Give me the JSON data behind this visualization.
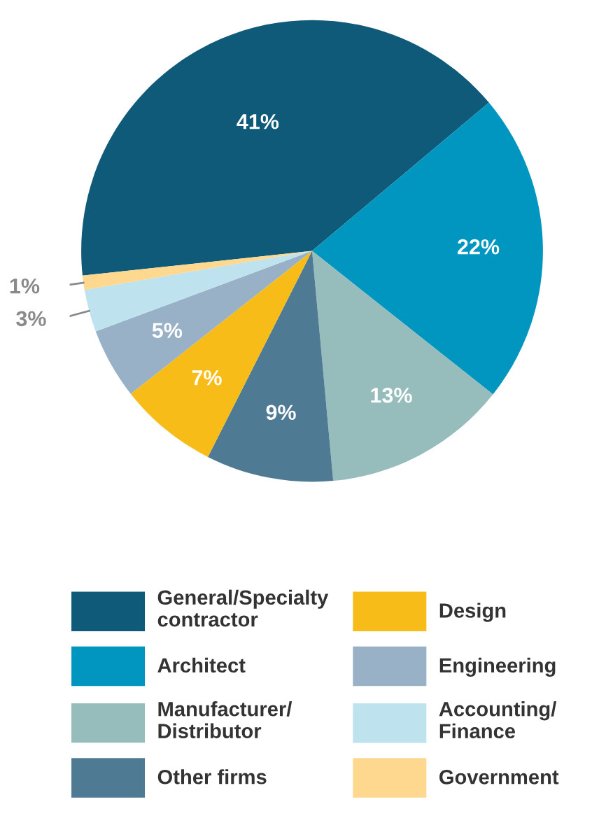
{
  "chart_data": {
    "type": "pie",
    "categories": [
      "General/Specialty\ncontractor",
      "Architect",
      "Manufacturer/\nDistributor",
      "Other firms",
      "Design",
      "Engineering",
      "Accounting/\nFinance",
      "Government"
    ],
    "values": [
      41,
      22,
      13,
      9,
      7,
      5,
      3,
      1
    ],
    "value_labels": [
      "41%",
      "22%",
      "13%",
      "9%",
      "7%",
      "5%",
      "3%",
      "1%"
    ],
    "colors": [
      "#0f5a78",
      "#0096c0",
      "#96bcbb",
      "#4f7a94",
      "#f7bc17",
      "#98b1c6",
      "#bfe2ef",
      "#fdd88e"
    ],
    "legend": "bottom"
  }
}
